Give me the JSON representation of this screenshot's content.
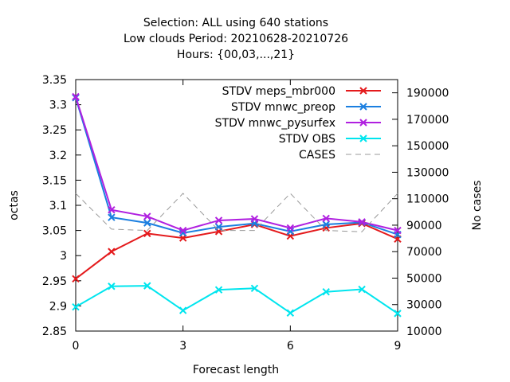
{
  "chart_data": {
    "type": "line",
    "title_lines": [
      "Selection: ALL using   640 stations",
      "Low clouds   Period: 20210628-20210726",
      "Hours: {00,03,...,21}"
    ],
    "xlabel": "Forecast length",
    "ylabel": "octas",
    "y2label": "No cases",
    "xlim": [
      0,
      9
    ],
    "ylim": [
      2.85,
      3.35
    ],
    "y2lim": [
      10000,
      200000
    ],
    "xticks": [
      "0",
      "3",
      "6",
      "9"
    ],
    "yticks": [
      "2.85",
      "2.9",
      "2.95",
      "3",
      "3.05",
      "3.1",
      "3.15",
      "3.2",
      "3.25",
      "3.3",
      "3.35"
    ],
    "y2ticks": [
      "10000",
      "30000",
      "50000",
      "70000",
      "90000",
      "110000",
      "130000",
      "150000",
      "170000",
      "190000"
    ],
    "grid": false,
    "legend_position": "top-right",
    "x": [
      0,
      1,
      2,
      3,
      4,
      5,
      6,
      7,
      8,
      9
    ],
    "series": [
      {
        "name": "STDV meps_mbr000",
        "color": "#e41a1c",
        "marker": "x",
        "values": [
          2.954,
          3.008,
          3.044,
          3.035,
          3.048,
          3.062,
          3.039,
          3.055,
          3.064,
          3.033
        ]
      },
      {
        "name": "STDV mnwc_preop",
        "color": "#1b7fe0",
        "marker": "x",
        "values": [
          3.314,
          3.076,
          3.065,
          3.045,
          3.057,
          3.064,
          3.048,
          3.062,
          3.066,
          3.042
        ]
      },
      {
        "name": "STDV mnwc_pysurfex",
        "color": "#b020e0",
        "marker": "x",
        "values": [
          3.316,
          3.091,
          3.078,
          3.05,
          3.07,
          3.073,
          3.055,
          3.074,
          3.067,
          3.05
        ]
      },
      {
        "name": "STDV OBS",
        "color": "#00e5ee",
        "marker": "x",
        "values": [
          2.898,
          2.939,
          2.94,
          2.891,
          2.932,
          2.935,
          2.886,
          2.928,
          2.933,
          2.885
        ]
      },
      {
        "name": "CASES",
        "color": "#999999",
        "dashed": true,
        "axis": "y2",
        "values": [
          114000,
          87000,
          86000,
          114000,
          86000,
          86000,
          114000,
          86000,
          85000,
          114000
        ]
      }
    ]
  }
}
